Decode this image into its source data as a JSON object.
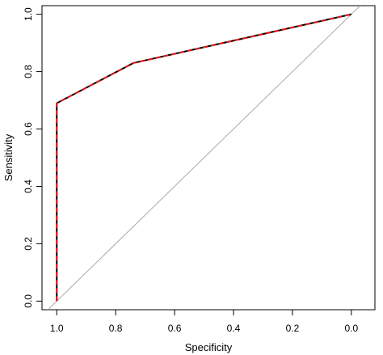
{
  "chart_data": {
    "type": "line",
    "title": "",
    "xlabel": "Specificity",
    "ylabel": "Sensitivity",
    "x_reversed": true,
    "xlim": [
      1.05,
      -0.08
    ],
    "ylim": [
      -0.03,
      1.03
    ],
    "xticks": [
      1.0,
      0.8,
      0.6,
      0.4,
      0.2,
      0.0
    ],
    "xtick_labels": [
      "1.0",
      "0.8",
      "0.6",
      "0.4",
      "0.2",
      "0.0"
    ],
    "yticks": [
      0.0,
      0.2,
      0.4,
      0.6,
      0.8,
      1.0
    ],
    "ytick_labels": [
      "0.0",
      "0.2",
      "0.4",
      "0.6",
      "0.8",
      "1.0"
    ],
    "grid": false,
    "series": [
      {
        "x": [
          1.0,
          1.0,
          0.74,
          0.0
        ],
        "y": [
          0.0,
          0.69,
          0.83,
          1.0
        ],
        "style": "solid",
        "color": "#000000"
      },
      {
        "x": [
          1.0,
          1.0,
          0.74,
          0.0
        ],
        "y": [
          0.0,
          0.69,
          0.83,
          1.0
        ],
        "style": "dashed",
        "color": "#e41a1c"
      }
    ],
    "reference_line": {
      "x": [
        1.0,
        0.0
      ],
      "y": [
        0.0,
        1.0
      ],
      "color": "#aaaaaa"
    }
  }
}
